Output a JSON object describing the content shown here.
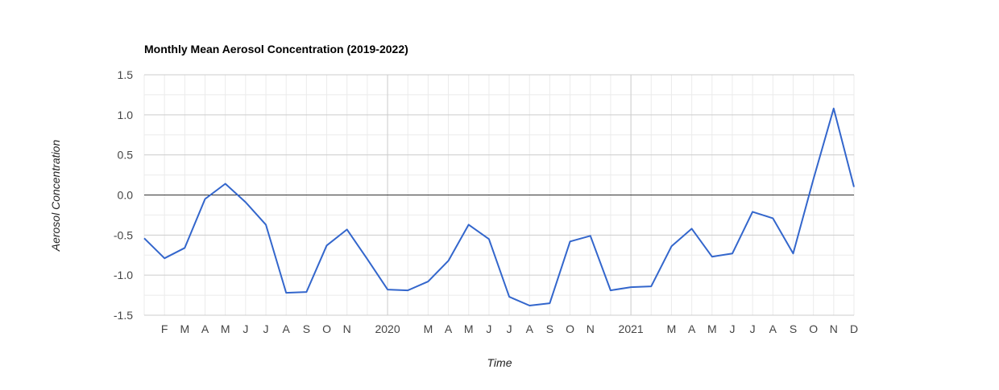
{
  "chart_data": {
    "type": "line",
    "title": "Monthly Mean Aerosol Concentration (2019-2022)",
    "xlabel": "Time",
    "ylabel": "Aerosol Concentration",
    "ylim": [
      -1.5,
      1.5
    ],
    "y_ticks": [
      "1.5",
      "1.0",
      "0.5",
      "0.0",
      "-0.5",
      "-1.0",
      "-1.5"
    ],
    "x_ticks": [
      {
        "month": 2,
        "label": "F"
      },
      {
        "month": 3,
        "label": "M"
      },
      {
        "month": 4,
        "label": "A"
      },
      {
        "month": 5,
        "label": "M"
      },
      {
        "month": 6,
        "label": "J"
      },
      {
        "month": 7,
        "label": "J"
      },
      {
        "month": 8,
        "label": "A"
      },
      {
        "month": 9,
        "label": "S"
      },
      {
        "month": 10,
        "label": "O"
      },
      {
        "month": 11,
        "label": "N"
      },
      {
        "month": 13,
        "label": "2020"
      },
      {
        "month": 15,
        "label": "M"
      },
      {
        "month": 16,
        "label": "A"
      },
      {
        "month": 17,
        "label": "M"
      },
      {
        "month": 18,
        "label": "J"
      },
      {
        "month": 19,
        "label": "J"
      },
      {
        "month": 20,
        "label": "A"
      },
      {
        "month": 21,
        "label": "S"
      },
      {
        "month": 22,
        "label": "O"
      },
      {
        "month": 23,
        "label": "N"
      },
      {
        "month": 25,
        "label": "2021"
      },
      {
        "month": 27,
        "label": "M"
      },
      {
        "month": 28,
        "label": "A"
      },
      {
        "month": 29,
        "label": "M"
      },
      {
        "month": 30,
        "label": "J"
      },
      {
        "month": 31,
        "label": "J"
      },
      {
        "month": 32,
        "label": "A"
      },
      {
        "month": 33,
        "label": "S"
      },
      {
        "month": 34,
        "label": "O"
      },
      {
        "month": 35,
        "label": "N"
      },
      {
        "month": 36,
        "label": "D"
      }
    ],
    "xlim_months": [
      1,
      36
    ],
    "major_gridline_months": [
      13,
      25
    ],
    "grid": true,
    "zero_line": true,
    "colors": {
      "series": "#3366cc",
      "gridline": "#cccccc",
      "minor_gridline": "#ebebeb",
      "zero_line": "#333333"
    },
    "series": [
      {
        "x_months": [
          1,
          2,
          3,
          4,
          5,
          6,
          7,
          8,
          9,
          10,
          11,
          12,
          13,
          14,
          15,
          16,
          17,
          18,
          19,
          20,
          21,
          22,
          23,
          24,
          25,
          26,
          27,
          28,
          29,
          30,
          31,
          32,
          33,
          34,
          35,
          36
        ],
        "values": [
          -0.54,
          -0.79,
          -0.66,
          -0.05,
          0.14,
          -0.09,
          -0.37,
          -1.22,
          -1.21,
          -0.63,
          -0.43,
          -0.8,
          -1.18,
          -1.19,
          -1.08,
          -0.82,
          -0.37,
          -0.55,
          -1.27,
          -1.38,
          -1.35,
          -0.58,
          -0.51,
          -1.19,
          -1.15,
          -1.14,
          -0.64,
          -0.42,
          -0.77,
          -0.73,
          -0.21,
          -0.29,
          -0.73,
          0.2,
          1.08,
          0.1
        ]
      }
    ]
  }
}
